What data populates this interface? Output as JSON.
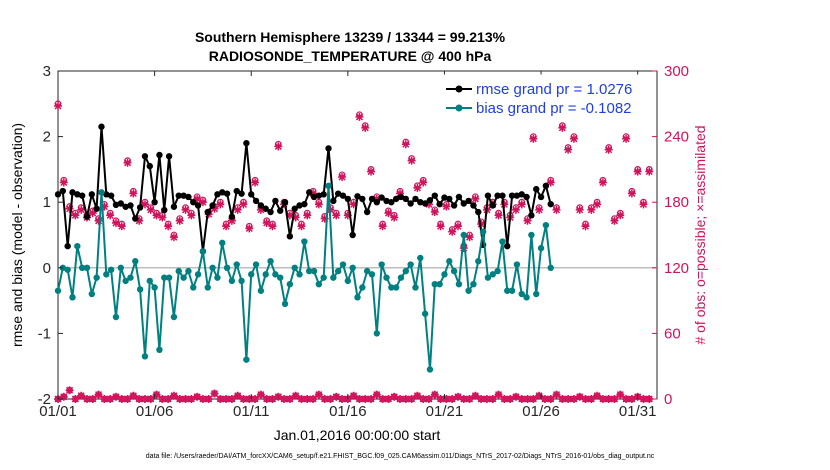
{
  "chart_data": {
    "type": "line",
    "title_line1": "Southern Hemisphere 13239 / 13344 = 99.213%",
    "title_line2": "RADIOSONDE_TEMPERATURE @ 400 hPa",
    "ylabel_left": "rmse and bias (model - observation)",
    "ylabel_right": "# of obs: o=possible; ×=assimilated",
    "xlabel": "Jan.01,2016 00:00:00 start",
    "footer": "data file: /Users/raeder/DAI/ATM_forcXX/CAM6_setup/f.e21.FHIST_BGC.f09_025.CAM6assim.011/Diags_NTrS_2017-02/Diags_NTrS_2016-01/obs_diag_output.nc",
    "x_ticks": [
      "01/01",
      "01/06",
      "01/11",
      "01/16",
      "01/21",
      "01/26",
      "01/31"
    ],
    "y_left_ticks": [
      "-2",
      "-1",
      "0",
      "1",
      "2",
      "3"
    ],
    "y_right_ticks": [
      "0",
      "60",
      "120",
      "180",
      "240",
      "300"
    ],
    "ylim_left": [
      -2,
      3
    ],
    "ylim_right": [
      0,
      300
    ],
    "xlim_days": [
      1,
      32
    ],
    "zero_line": 0,
    "grid": "off",
    "legend_placement": "top-right",
    "colors": {
      "rmse": "#000000",
      "bias": "#008080",
      "counts": "#d0145c",
      "legend_text": "#1f3fe0",
      "zero_line": "#bdbdbd"
    },
    "series": [
      {
        "name": "rmse grand pr = 1.0276",
        "x_start_day": 1.0,
        "x_step_days": 0.25,
        "values": [
          1.12,
          1.17,
          0.33,
          1.15,
          1.12,
          1.1,
          0.78,
          1.12,
          0.9,
          2.15,
          1.12,
          1.1,
          0.96,
          0.98,
          0.93,
          0.95,
          0.75,
          0.92,
          1.7,
          1.55,
          1.0,
          1.72,
          0.88,
          1.7,
          0.93,
          1.1,
          1.1,
          1.08,
          1.0,
          0.95,
          0.25,
          0.85,
          0.95,
          1.12,
          1.15,
          1.13,
          0.78,
          1.17,
          1.13,
          1.9,
          1.12,
          1.02,
          0.95,
          0.9,
          0.85,
          1.02,
          0.87,
          1.0,
          0.48,
          0.9,
          0.95,
          0.97,
          1.15,
          1.08,
          1.1,
          1.12,
          1.82,
          1.02,
          1.13,
          1.1,
          1.05,
          0.5,
          1.09,
          1.05,
          0.85,
          1.05,
          1.0,
          1.07,
          1.02,
          1.0,
          1.05,
          1.08,
          1.05,
          0.98,
          1.05,
          1.0,
          0.98,
          1.03,
          1.1,
          0.97,
          1.07,
          1.05,
          0.95,
          1.08,
          0.98,
          1.02,
          0.95,
          0.85,
          0.35,
          1.1,
          0.95,
          1.1,
          1.1,
          0.33,
          1.1,
          1.1,
          1.12,
          1.08,
          0.8,
          1.2,
          1.08,
          1.25,
          0.97
        ]
      },
      {
        "name": "bias grand pr = -0.1082",
        "x_start_day": 1.0,
        "x_step_days": 0.25,
        "values": [
          -0.35,
          0.0,
          -0.03,
          -0.45,
          0.33,
          0.0,
          0.0,
          -0.4,
          -0.15,
          1.15,
          -0.1,
          -0.03,
          -0.75,
          0.0,
          -0.2,
          -0.15,
          0.1,
          -0.33,
          -1.35,
          -0.2,
          -0.3,
          -1.25,
          -0.15,
          -0.15,
          -0.75,
          -0.05,
          -0.15,
          -0.05,
          -0.3,
          -0.1,
          0.25,
          -0.3,
          0.0,
          -0.15,
          0.38,
          0.0,
          -0.2,
          0.05,
          -0.2,
          -1.4,
          -0.1,
          0.05,
          -0.35,
          -0.1,
          0.1,
          -0.1,
          -0.15,
          -0.55,
          -0.25,
          0.0,
          -0.1,
          0.4,
          -0.05,
          -0.05,
          -0.25,
          -0.15,
          1.25,
          -0.15,
          -0.05,
          0.05,
          -0.2,
          0.0,
          -0.45,
          -0.3,
          -0.05,
          -0.1,
          -1.0,
          0.05,
          -0.15,
          -0.3,
          -0.3,
          -0.15,
          -0.05,
          0.05,
          -0.3,
          0.15,
          -0.7,
          -1.55,
          -0.25,
          -0.25,
          -0.1,
          0.1,
          -0.05,
          -0.25,
          0.5,
          -0.35,
          -0.25,
          0.1,
          0.55,
          -0.15,
          -0.1,
          -0.05,
          0.4,
          -0.35,
          -0.35,
          0.05,
          -0.4,
          -0.45,
          0.5,
          -0.4,
          0.3,
          0.65,
          0.0
        ]
      }
    ],
    "counts_possible_top": [
      270,
      200,
      176,
      170,
      175,
      168,
      172,
      165,
      178,
      170,
      163,
      160,
      218,
      190,
      165,
      180,
      175,
      170,
      168,
      160,
      150,
      165,
      175,
      170,
      185,
      182,
      171,
      176,
      180,
      160,
      165,
      175,
      180,
      158,
      200,
      175,
      163,
      160,
      233,
      180,
      170,
      168,
      160,
      170,
      190,
      180,
      167,
      175,
      170,
      205,
      170,
      180,
      260,
      250,
      210,
      185,
      160,
      172,
      168,
      190,
      235,
      220,
      195,
      200,
      180,
      173,
      160,
      178,
      155,
      160,
      140,
      150,
      185,
      162,
      175,
      180,
      170,
      180,
      168,
      175,
      180,
      165,
      240,
      175,
      270,
      200,
      175,
      250,
      230,
      240,
      175,
      160,
      175,
      180,
      200,
      230,
      165,
      170,
      240,
      190,
      210,
      180,
      210
    ],
    "counts_assimilated_top": [
      268,
      198,
      174,
      168,
      173,
      166,
      170,
      163,
      176,
      168,
      161,
      158,
      216,
      188,
      163,
      178,
      173,
      168,
      166,
      158,
      148,
      163,
      173,
      168,
      183,
      180,
      169,
      174,
      178,
      158,
      163,
      173,
      178,
      156,
      198,
      173,
      161,
      158,
      231,
      178,
      168,
      166,
      158,
      168,
      188,
      178,
      165,
      173,
      168,
      203,
      168,
      178,
      258,
      248,
      208,
      183,
      158,
      170,
      166,
      188,
      233,
      218,
      193,
      198,
      178,
      171,
      158,
      176,
      153,
      158,
      138,
      148,
      183,
      160,
      173,
      178,
      168,
      178,
      166,
      173,
      178,
      163,
      238,
      173,
      268,
      198,
      173,
      248,
      228,
      238,
      173,
      158,
      173,
      178,
      198,
      228,
      163,
      168,
      238,
      188,
      208,
      178,
      208
    ],
    "counts_possible_bottom": [
      0,
      2,
      8,
      0,
      3,
      0,
      0,
      4,
      0,
      0,
      2,
      0,
      0,
      3,
      0,
      0,
      0,
      4,
      0,
      0,
      3,
      0,
      0,
      0,
      2,
      0,
      0,
      5,
      0,
      0,
      0,
      3,
      0,
      0,
      0,
      4,
      0,
      0,
      2,
      0,
      0,
      3,
      0,
      0,
      0,
      4,
      0,
      0,
      2,
      0,
      0,
      3,
      0,
      0,
      0,
      4,
      0,
      0,
      2,
      0,
      0,
      0,
      3,
      0,
      0,
      4,
      0,
      0,
      0,
      2,
      0,
      0,
      3,
      0,
      0,
      0,
      4,
      0,
      0,
      2,
      0,
      0,
      0,
      3,
      0,
      0,
      4,
      0,
      0,
      0,
      2,
      0,
      0,
      3,
      0,
      0,
      0,
      4,
      0,
      0,
      2,
      0,
      0
    ],
    "counts_assimilated_bottom": [
      0,
      2,
      8,
      0,
      3,
      0,
      0,
      4,
      0,
      0,
      2,
      0,
      0,
      3,
      0,
      0,
      0,
      4,
      0,
      0,
      3,
      0,
      0,
      0,
      2,
      0,
      0,
      5,
      0,
      0,
      0,
      3,
      0,
      0,
      0,
      4,
      0,
      0,
      2,
      0,
      0,
      3,
      0,
      0,
      0,
      4,
      0,
      0,
      2,
      0,
      0,
      3,
      0,
      0,
      0,
      4,
      0,
      0,
      2,
      0,
      0,
      0,
      3,
      0,
      0,
      4,
      0,
      0,
      0,
      2,
      0,
      0,
      3,
      0,
      0,
      0,
      4,
      0,
      0,
      2,
      0,
      0,
      0,
      3,
      0,
      0,
      4,
      0,
      0,
      0,
      2,
      0,
      0,
      3,
      0,
      0,
      0,
      4,
      0,
      0,
      2,
      0,
      0
    ]
  }
}
